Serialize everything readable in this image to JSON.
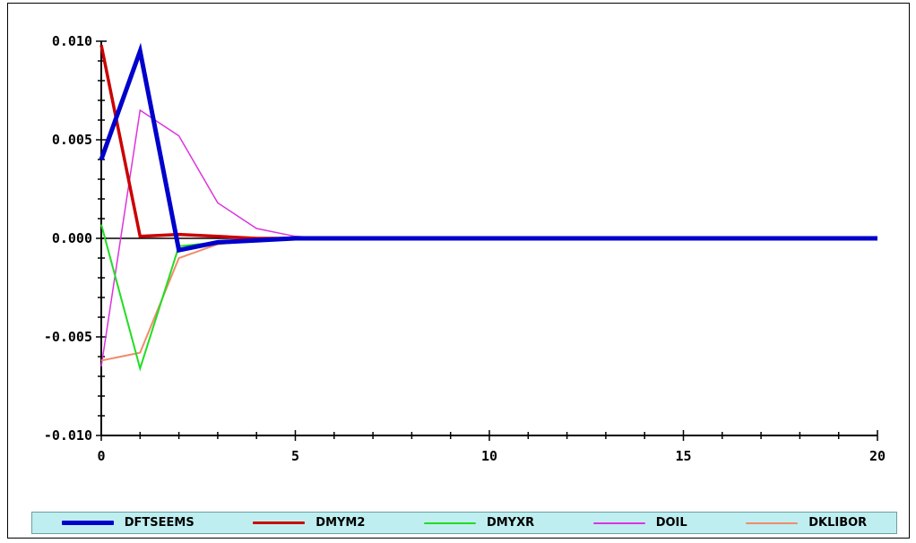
{
  "chart_data": {
    "type": "line",
    "x": [
      0,
      1,
      2,
      3,
      4,
      5,
      6,
      7,
      8,
      9,
      10,
      11,
      12,
      13,
      14,
      15,
      16,
      17,
      18,
      19,
      20
    ],
    "xlim": [
      0,
      20
    ],
    "ylim": [
      -0.01,
      0.01
    ],
    "xticks": [
      "0",
      "5",
      "10",
      "15",
      "20"
    ],
    "xtick_values": [
      0,
      5,
      10,
      15,
      20
    ],
    "yticks": [
      "0.010",
      "0.005",
      "0.000",
      "-0.005",
      "-0.010"
    ],
    "ytick_values": [
      0.01,
      0.005,
      0.0,
      -0.005,
      -0.01
    ],
    "series": [
      {
        "name": "DFTSEEMS",
        "color": "#0000cc",
        "width": 5,
        "values": [
          0.004,
          0.0095,
          -0.0006,
          -0.0002,
          -0.0001,
          0,
          0,
          0,
          0,
          0,
          0,
          0,
          0,
          0,
          0,
          0,
          0,
          0,
          0,
          0,
          0
        ]
      },
      {
        "name": "DMYM2",
        "color": "#cc0000",
        "width": 3.5,
        "values": [
          0.0098,
          0.0001,
          0.0002,
          0.0001,
          0,
          0,
          0,
          0,
          0,
          0,
          0,
          0,
          0,
          0,
          0,
          0,
          0,
          0,
          0,
          0,
          0
        ]
      },
      {
        "name": "DMYXR",
        "color": "#22dd22",
        "width": 2,
        "values": [
          0.0007,
          -0.0066,
          -0.0004,
          -0.0002,
          -0.0001,
          0,
          0,
          0,
          0,
          0,
          0,
          0,
          0,
          0,
          0,
          0,
          0,
          0,
          0,
          0,
          0
        ]
      },
      {
        "name": "DOIL",
        "color": "#dd33dd",
        "width": 1.5,
        "values": [
          -0.0065,
          0.0065,
          0.0052,
          0.0018,
          0.0005,
          0.0001,
          0,
          0,
          0,
          0,
          0,
          0,
          0,
          0,
          0,
          0,
          0,
          0,
          0,
          0,
          0
        ]
      },
      {
        "name": "DKLIBOR",
        "color": "#f08c6a",
        "width": 2,
        "values": [
          -0.0062,
          -0.0058,
          -0.001,
          -0.0003,
          -0.0001,
          0,
          0,
          0,
          0,
          0,
          0,
          0,
          0,
          0,
          0,
          0,
          0,
          0,
          0,
          0,
          0
        ]
      }
    ],
    "legend_position": "bottom",
    "grid": false
  }
}
